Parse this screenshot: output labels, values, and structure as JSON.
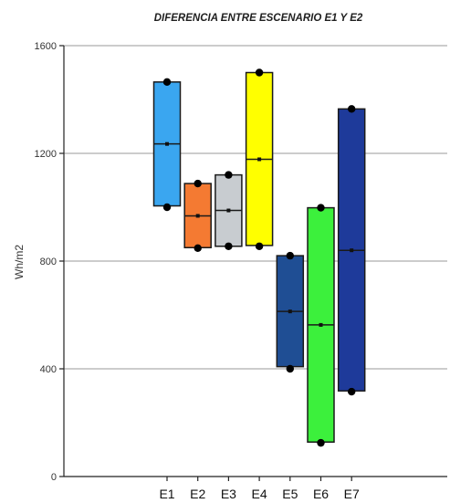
{
  "chart_data": {
    "type": "box",
    "title": "DIFERENCIA ENTRE ESCENARIO E1 Y E2",
    "xlabel": "",
    "ylabel": "Wh/m2",
    "ylim": [
      0,
      1600
    ],
    "yticks": [
      0,
      400,
      800,
      1200,
      1600
    ],
    "grid": true,
    "categories": [
      "E1",
      "E2",
      "E3",
      "E4",
      "E5",
      "E6",
      "E7"
    ],
    "boxes": [
      {
        "category": "E1",
        "min": 1000,
        "q1": 1005,
        "median": 1235,
        "q3": 1465,
        "max": 1465,
        "color": "#3aa6f0"
      },
      {
        "category": "E2",
        "min": 848,
        "q1": 850,
        "median": 968,
        "q3": 1088,
        "max": 1088,
        "color": "#f47a32"
      },
      {
        "category": "E3",
        "min": 855,
        "q1": 855,
        "median": 988,
        "q3": 1120,
        "max": 1120,
        "color": "#c8ccd0"
      },
      {
        "category": "E4",
        "min": 855,
        "q1": 858,
        "median": 1178,
        "q3": 1500,
        "max": 1500,
        "color": "#ffff00"
      },
      {
        "category": "E5",
        "min": 400,
        "q1": 408,
        "median": 613,
        "q3": 820,
        "max": 820,
        "color": "#1f4e94"
      },
      {
        "category": "E6",
        "min": 125,
        "q1": 128,
        "median": 563,
        "q3": 998,
        "max": 998,
        "color": "#3cf03c"
      },
      {
        "category": "E7",
        "min": 315,
        "q1": 318,
        "median": 840,
        "q3": 1365,
        "max": 1365,
        "color": "#1e3a9a"
      }
    ]
  }
}
